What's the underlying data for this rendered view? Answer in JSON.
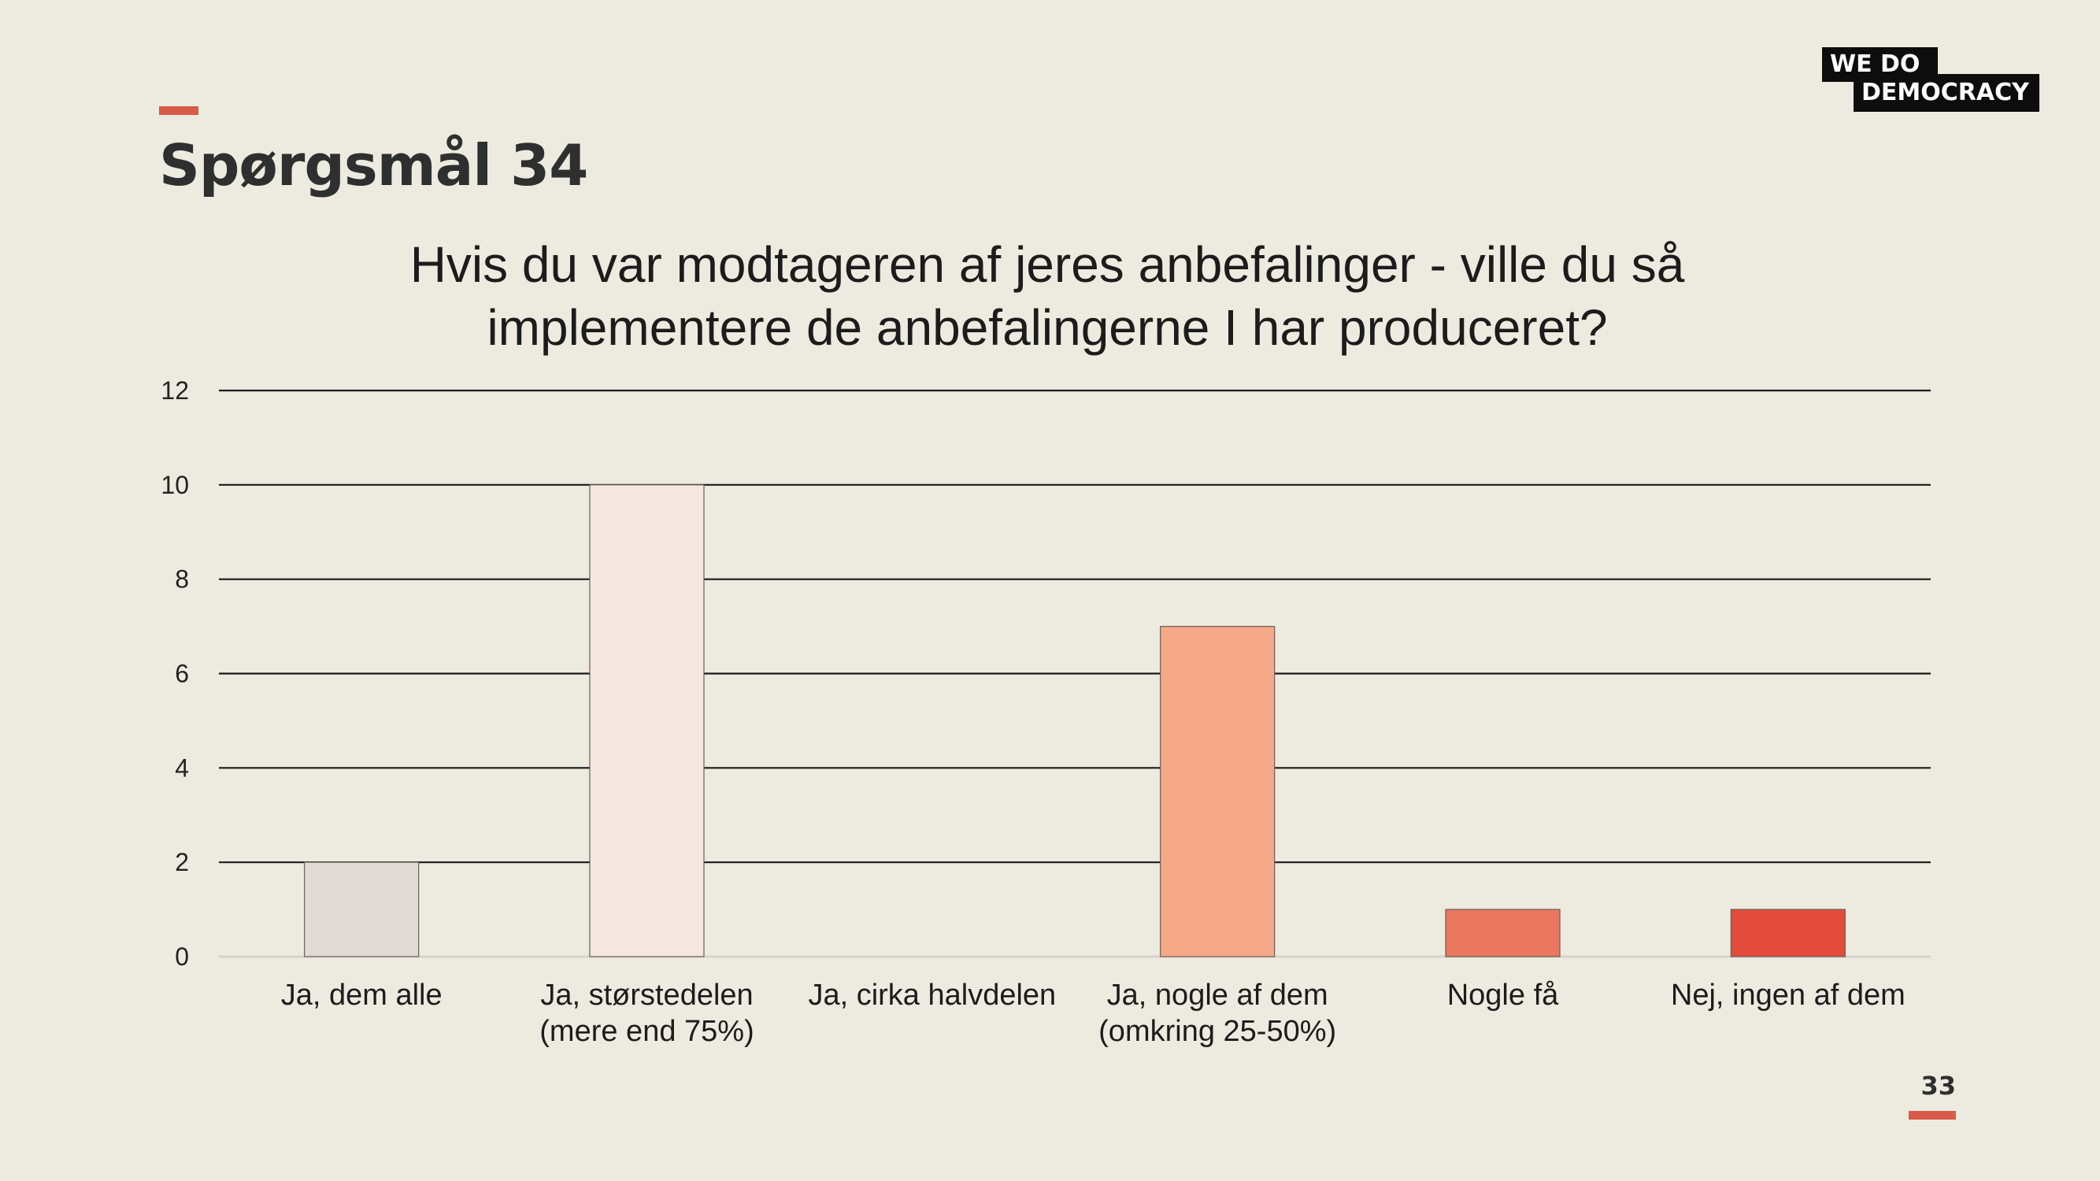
{
  "slide": {
    "title": "Spørgsmål 34",
    "page_number": "33",
    "accent_color": "#d85a48"
  },
  "logo": {
    "line1": "WE  DO",
    "line2": "DEMOCRACY"
  },
  "chart_data": {
    "type": "bar",
    "title_lines": [
      "Hvis du var modtageren af jeres anbefalinger - ville du så",
      "implementere de anbefalingerne I har produceret?"
    ],
    "categories": [
      [
        "Ja, dem alle"
      ],
      [
        "Ja, størstedelen",
        "(mere end 75%)"
      ],
      [
        "Ja, cirka halvdelen"
      ],
      [
        "Ja, nogle af dem",
        "(omkring 25-50%)"
      ],
      [
        "Nogle få"
      ],
      [
        "Nej, ingen af dem"
      ]
    ],
    "values": [
      2,
      10,
      0,
      7,
      1,
      1
    ],
    "colors": [
      "#e0dad4",
      "#f5e7df",
      "#f3c6b0",
      "#f6a988",
      "#e9775e",
      "#e24b3a"
    ],
    "yticks": [
      "0",
      "2",
      "4",
      "6",
      "8",
      "10",
      "12"
    ],
    "ylim": [
      0,
      12
    ],
    "grid": true,
    "legend": "none"
  }
}
